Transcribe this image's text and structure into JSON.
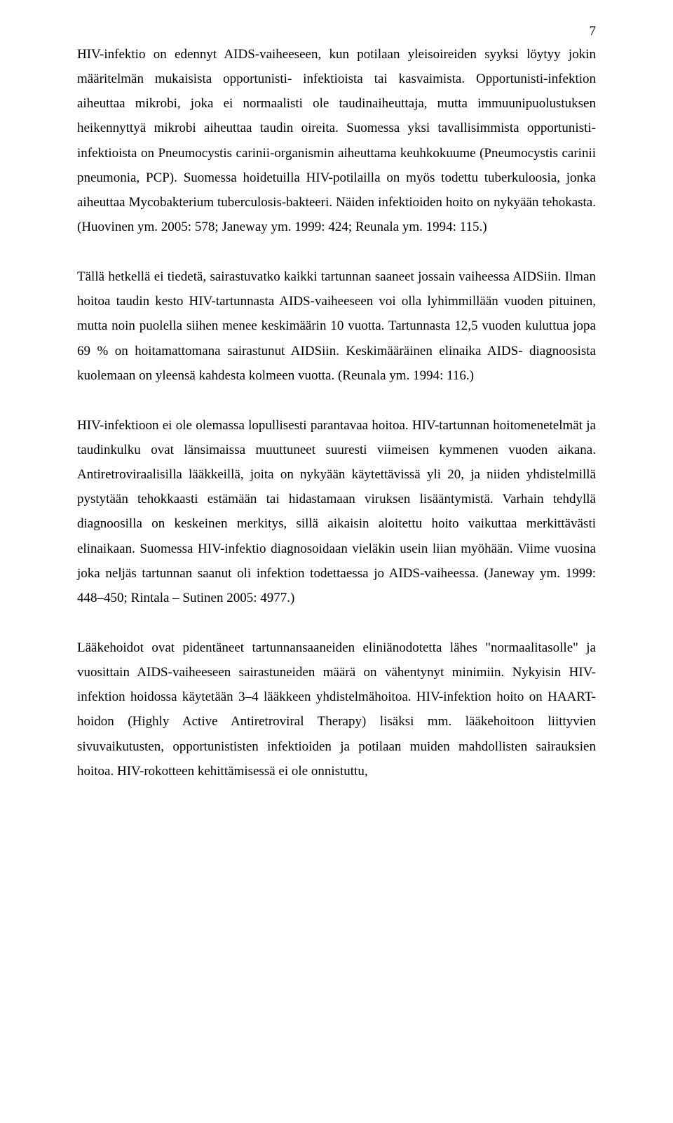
{
  "page_number": "7",
  "paragraphs": [
    "HIV-infektio on edennyt AIDS-vaiheeseen, kun potilaan yleisoireiden syyksi löytyy jokin määritelmän mukaisista opportunisti- infektioista tai kasvaimista. Opportunisti-infektion aiheuttaa mikrobi, joka ei normaalisti ole taudinaiheuttaja, mutta immuunipuolustuksen heikennyttyä mikrobi aiheuttaa taudin oireita. Suomessa yksi tavallisimmista opportunisti-infektioista on Pneumocystis carinii-organismin aiheuttama keuhkokuume (Pneumocystis carinii pneumonia, PCP). Suomessa hoidetuilla HIV-potilailla on myös todettu tuberkuloosia, jonka aiheuttaa Mycobakterium tuberculosis-bakteeri. Näiden infektioiden hoito on nykyään tehokasta. (Huovinen ym. 2005: 578; Janeway ym. 1999: 424; Reunala ym. 1994: 115.)",
    "Tällä hetkellä ei tiedetä, sairastuvatko kaikki tartunnan saaneet jossain vaiheessa AIDSiin. Ilman hoitoa taudin kesto HIV-tartunnasta AIDS-vaiheeseen voi olla lyhimmillään vuoden pituinen, mutta noin puolella siihen menee keskimäärin 10 vuotta. Tartunnasta 12,5 vuoden kuluttua jopa 69 % on hoitamattomana sairastunut AIDSiin. Keskimääräinen elinaika AIDS- diagnoosista kuolemaan on yleensä kahdesta kolmeen vuotta. (Reunala ym. 1994: 116.)",
    "HIV-infektioon ei ole olemassa lopullisesti parantavaa hoitoa. HIV-tartunnan hoitomenetelmät ja taudinkulku ovat länsimaissa muuttuneet suuresti viimeisen kymmenen vuoden aikana. Antiretroviraalisilla lääkkeillä, joita on nykyään käytettävissä yli 20, ja niiden yhdistelmillä pystytään tehokkaasti estämään tai hidastamaan viruksen lisääntymistä. Varhain tehdyllä diagnoosilla on keskeinen merkitys, sillä aikaisin aloitettu hoito vaikuttaa merkittävästi elinaikaan. Suomessa HIV-infektio diagnosoidaan vieläkin usein liian myöhään. Viime vuosina joka neljäs tartunnan saanut oli infektion todettaessa jo AIDS-vaiheessa. (Janeway ym. 1999: 448–450; Rintala – Sutinen 2005: 4977.)",
    "Lääkehoidot ovat pidentäneet tartunnansaaneiden eliniänodotetta lähes \"normaalitasolle\" ja vuosittain AIDS-vaiheeseen sairastuneiden määrä on vähentynyt minimiin. Nykyisin HIV-infektion hoidossa käytetään 3–4 lääkkeen yhdistelmähoitoa. HIV-infektion hoito on HAART-hoidon (Highly Active Antiretroviral Therapy) lisäksi mm. lääkehoitoon liittyvien sivuvaikutusten, opportunististen infektioiden ja potilaan muiden mahdollisten sairauksien hoitoa. HIV-rokotteen kehittämisessä ei ole onnistuttu,"
  ]
}
